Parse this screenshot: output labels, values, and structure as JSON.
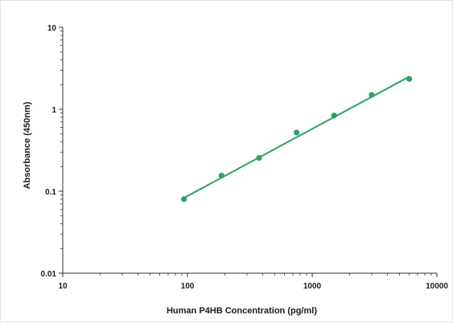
{
  "chart_data": {
    "type": "scatter",
    "title": "",
    "xlabel": "Human P4HB Concentration (pg/ml)",
    "ylabel": "Absorbance (450nm)",
    "x_scale": "log",
    "y_scale": "log",
    "xlim": [
      10,
      10000
    ],
    "ylim": [
      0.01,
      10
    ],
    "x_ticks": [
      "10",
      "100",
      "1000",
      "10000"
    ],
    "y_ticks": [
      "0.01",
      "0.1",
      "1",
      "10"
    ],
    "grid": false,
    "legend": "none",
    "series": [
      {
        "x": [
          93.75,
          187.5,
          375,
          750,
          1500,
          3000,
          6000
        ],
        "y": [
          0.08,
          0.155,
          0.255,
          0.52,
          0.84,
          1.5,
          2.35
        ]
      }
    ],
    "fit_line": {
      "x": [
        93.75,
        6000
      ],
      "y": [
        0.083,
        2.5
      ]
    },
    "colors": {
      "marker": "#2aa35f",
      "line": "#2aa35f",
      "axis": "#333333"
    }
  }
}
